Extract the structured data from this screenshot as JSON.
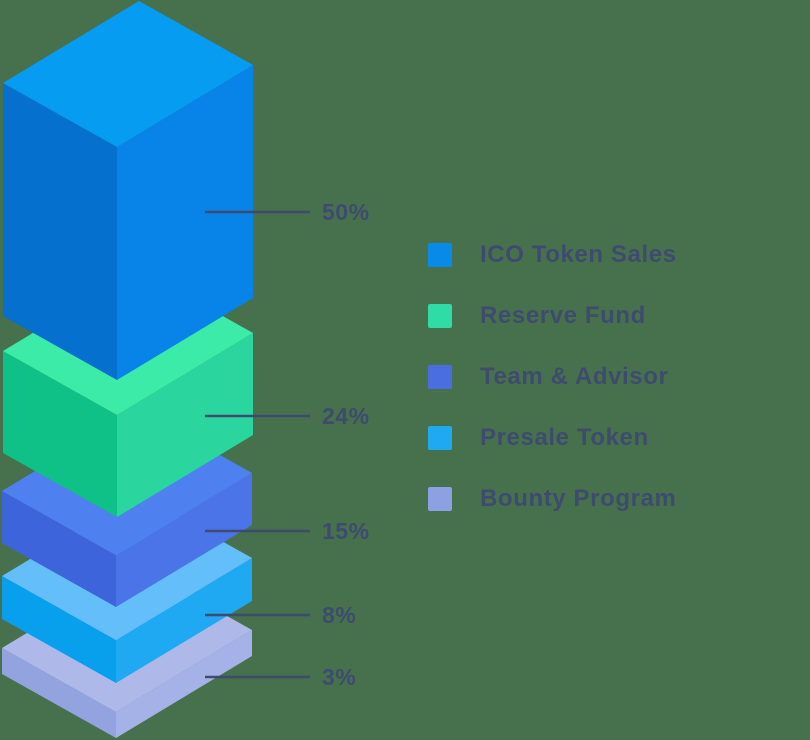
{
  "background_color": "#47714D",
  "label_color": "#3E4B6E",
  "line_color": "#3E4B6E",
  "chart_data": {
    "type": "isometric-stacked-bar",
    "title": "",
    "legend_position": "right",
    "units": "percent",
    "items": [
      {
        "label": "ICO Token Sales",
        "value": 50,
        "value_label": "50%",
        "legend_color": "#0989E8",
        "face_colors": {
          "top": "#069CF1",
          "left": "#0670CE",
          "right": "#0884E8"
        }
      },
      {
        "label": "Reserve Fund",
        "value": 24,
        "value_label": "24%",
        "legend_color": "#30DCA6",
        "face_colors": {
          "top": "#3CEBA7",
          "left": "#0FC186",
          "right": "#2BD69E"
        }
      },
      {
        "label": "Team & Advisor",
        "value": 15,
        "value_label": "15%",
        "legend_color": "#4A6EE0",
        "face_colors": {
          "top": "#4E80EF",
          "left": "#3D64DA",
          "right": "#4A74E8"
        }
      },
      {
        "label": "Presale Token",
        "value": 8,
        "value_label": "8%",
        "legend_color": "#1FA9F1",
        "face_colors": {
          "top": "#63BEFA",
          "left": "#089FED",
          "right": "#1FA9F2"
        }
      },
      {
        "label": "Bounty Program",
        "value": 3,
        "value_label": "3%",
        "legend_color": "#8CA0E2",
        "face_colors": {
          "top": "#AEB9EA",
          "left": "#93A3DF",
          "right": "#A5B2E7"
        }
      }
    ]
  }
}
